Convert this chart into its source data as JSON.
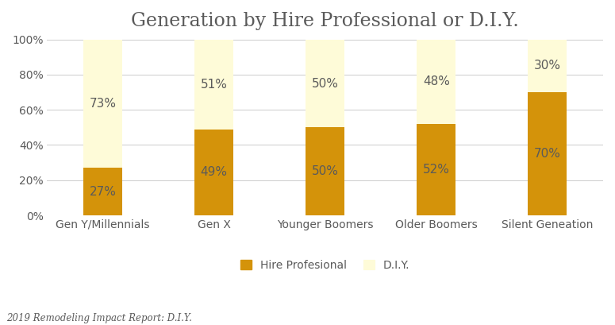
{
  "title": "Generation by Hire Professional or D.I.Y.",
  "categories": [
    "Gen Y/Millennials",
    "Gen X",
    "Younger Boomers",
    "Older Boomers",
    "Silent Geneation"
  ],
  "hire_professional": [
    27,
    49,
    50,
    52,
    70
  ],
  "diy": [
    73,
    51,
    50,
    48,
    30
  ],
  "hire_color": "#D4930A",
  "diy_color": "#FEFBD8",
  "bar_width": 0.35,
  "ylim": [
    0,
    100
  ],
  "yticks": [
    0,
    20,
    40,
    60,
    80,
    100
  ],
  "ytick_labels": [
    "0%",
    "20%",
    "40%",
    "60%",
    "80%",
    "100%"
  ],
  "legend_hire": "Hire Profesional",
  "legend_diy": "D.I.Y.",
  "footnote": "2019 Remodeling Impact Report: D.I.Y.",
  "title_fontsize": 17,
  "label_fontsize": 11,
  "tick_fontsize": 10,
  "legend_fontsize": 10,
  "footnote_fontsize": 8.5,
  "text_color": "#5A5A5A",
  "label_color_hire": "#5A5A5A",
  "label_color_diy": "#5A5A5A",
  "background_color": "#FFFFFF",
  "grid_color": "#CCCCCC"
}
